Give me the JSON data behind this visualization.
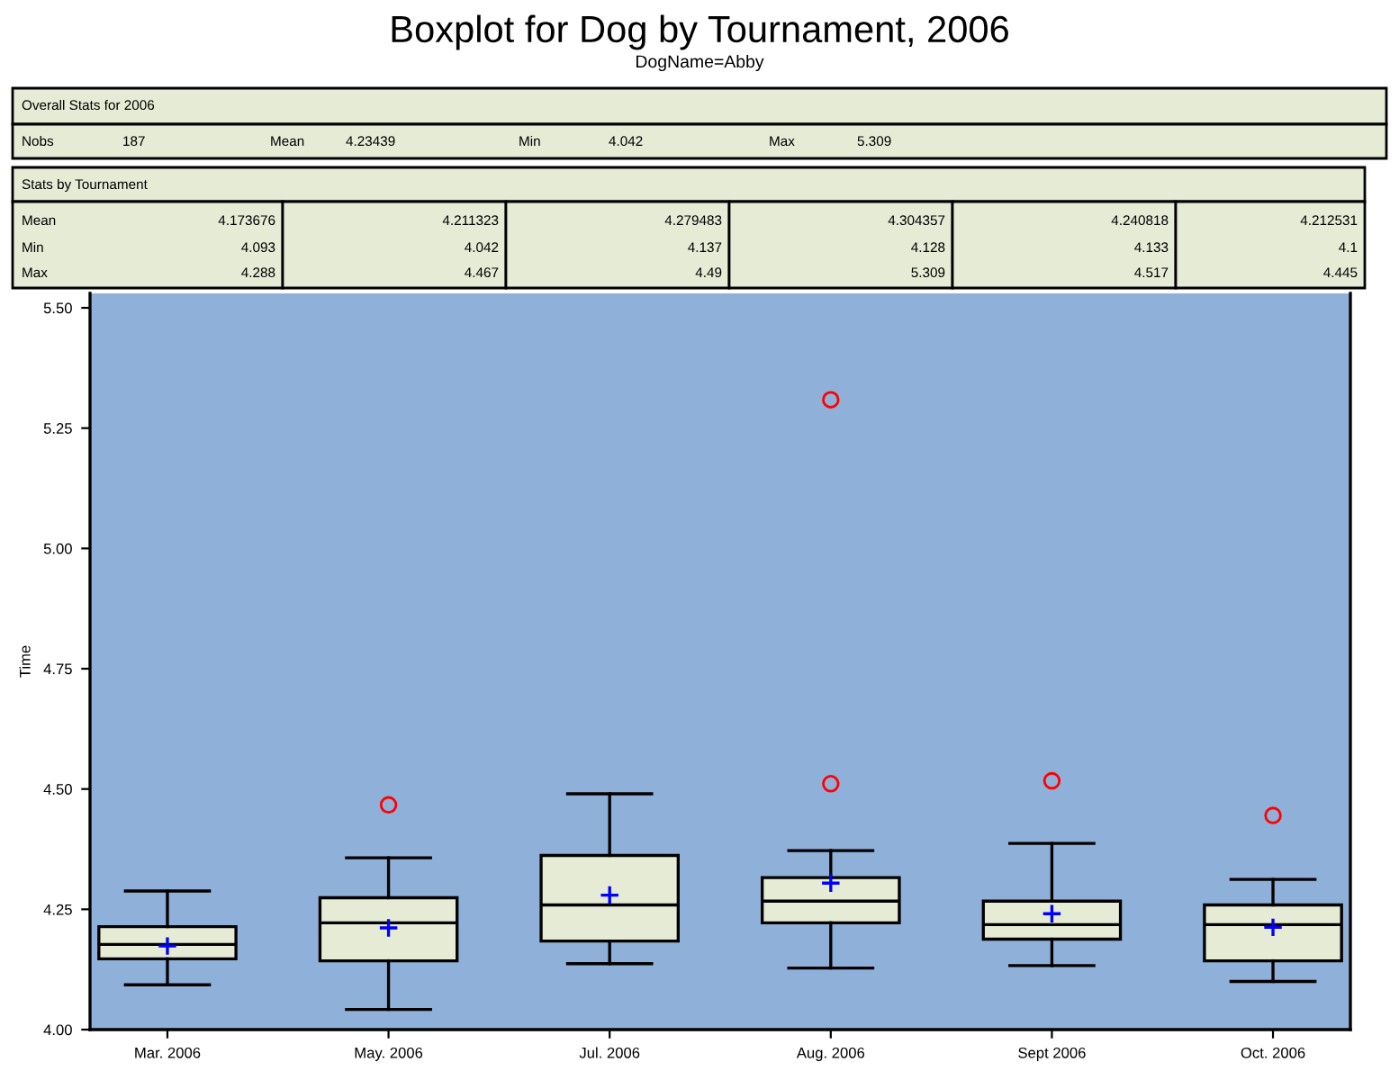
{
  "chart_data": {
    "type": "box",
    "title": "Boxplot for Dog by Tournament, 2006",
    "subtitle": "DogName=Abby",
    "ylabel": "Time",
    "categories": [
      "Mar. 2006",
      "May. 2006",
      "Jul. 2006",
      "Aug. 2006",
      "Sept 2006",
      "Oct. 2006"
    ],
    "boxes": [
      {
        "low": 4.093,
        "q1": 4.147,
        "median": 4.177,
        "q3": 4.214,
        "high": 4.288,
        "mean": 4.173676
      },
      {
        "low": 4.042,
        "q1": 4.143,
        "median": 4.222,
        "q3": 4.274,
        "high": 4.357,
        "mean": 4.211323,
        "outliers": [
          4.467
        ]
      },
      {
        "low": 4.137,
        "q1": 4.184,
        "median": 4.259,
        "q3": 4.362,
        "high": 4.49,
        "mean": 4.279483
      },
      {
        "low": 4.128,
        "q1": 4.222,
        "median": 4.267,
        "q3": 4.316,
        "high": 4.372,
        "mean": 4.304357,
        "outliers": [
          4.511,
          5.309
        ]
      },
      {
        "low": 4.133,
        "q1": 4.188,
        "median": 4.218,
        "q3": 4.267,
        "high": 4.387,
        "mean": 4.240818,
        "outliers": [
          4.517
        ]
      },
      {
        "low": 4.1,
        "q1": 4.143,
        "median": 4.218,
        "q3": 4.259,
        "high": 4.312,
        "mean": 4.212531,
        "outliers": [
          4.445
        ]
      }
    ],
    "ylim": [
      4.0,
      5.53
    ],
    "yticks": [
      {
        "value": 4.0,
        "label": "4.00"
      },
      {
        "value": 4.25,
        "label": "4.25"
      },
      {
        "value": 4.5,
        "label": "4.50"
      },
      {
        "value": 4.75,
        "label": "4.75"
      },
      {
        "value": 5.0,
        "label": "5.00"
      },
      {
        "value": 5.25,
        "label": "5.25"
      },
      {
        "value": 5.5,
        "label": "5.50"
      }
    ],
    "annotations": [
      "Overall Stats for 2006",
      "Nobs",
      "187",
      "Mean",
      "4.23439",
      "Min",
      "4.042",
      "Max",
      "5.309",
      "Stats by Tournament",
      "Mean",
      "Min",
      "Max",
      "4.173676",
      "4.211323",
      "4.279483",
      "4.304357",
      "4.240818",
      "4.212531",
      "4.093",
      "4.042",
      "4.137",
      "4.128",
      "4.133",
      "4.1",
      "4.288",
      "4.467",
      "4.49",
      "5.309",
      "4.517",
      "4.445"
    ]
  }
}
